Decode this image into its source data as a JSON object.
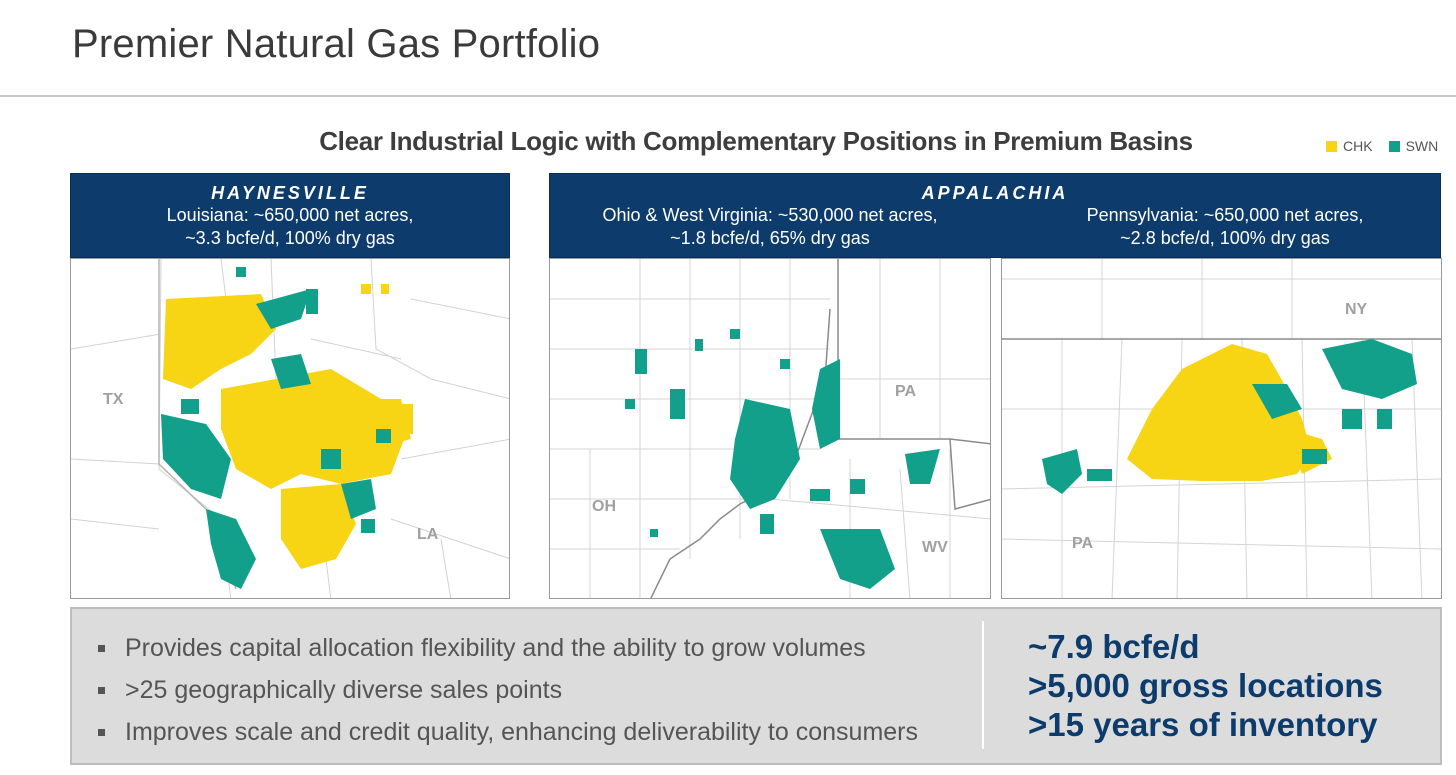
{
  "page": {
    "title": "Premier Natural Gas Portfolio",
    "subtitle": "Clear Industrial Logic with Complementary Positions in Premium Basins"
  },
  "legend": {
    "items": [
      {
        "label": "CHK",
        "color": "#f7d414"
      },
      {
        "label": "SWN",
        "color": "#13a08a"
      }
    ]
  },
  "haynesville": {
    "region": "HAYNESVILLE",
    "line1": "Louisiana: ~650,000 net acres,",
    "line2": "~3.3 bcfe/d, 100% dry gas",
    "labels": {
      "tx": "TX",
      "la": "LA"
    }
  },
  "appalachia": {
    "region": "APPALACHIA",
    "ohwv_line1": "Ohio & West Virginia: ~530,000 net acres,",
    "ohwv_line2": "~1.8 bcfe/d, 65% dry gas",
    "pa_line1": "Pennsylvania: ~650,000 net acres,",
    "pa_line2": "~2.8 bcfe/d, 100% dry gas",
    "labels": {
      "pa": "PA",
      "oh": "OH",
      "wv": "WV",
      "ny": "NY",
      "pa2": "PA"
    }
  },
  "bullets": [
    "Provides capital allocation flexibility and the ability to grow volumes",
    ">25 geographically diverse sales points",
    "Improves scale and credit quality, enhancing deliverability to consumers"
  ],
  "stats": [
    "~7.9 bcfe/d",
    ">5,000 gross locations",
    ">15 years of inventory"
  ]
}
